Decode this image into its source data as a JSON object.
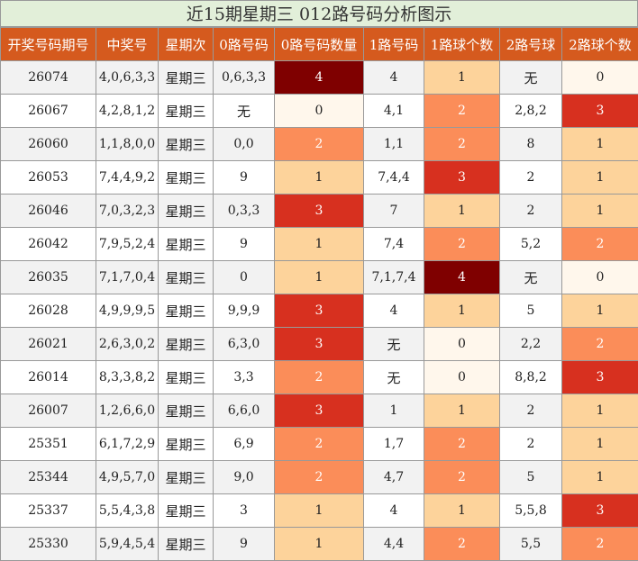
{
  "title": "近15期星期三 012路号码分析图示",
  "headers": [
    "开奖号码期号",
    "中奖号",
    "星期次",
    "0路号码",
    "0路号码数量",
    "1路号码",
    "1路球个数",
    "2路号球",
    "2路球个数"
  ],
  "rows": [
    {
      "period": "26074",
      "number": "4,0,6,3,3",
      "weekday": "星期三",
      "road0": "0,6,3,3",
      "road0_count": "4",
      "road1": "4",
      "road1_count": "1",
      "road2": "无",
      "road2_count": "0"
    },
    {
      "period": "26067",
      "number": "4,2,8,1,2",
      "weekday": "星期三",
      "road0": "无",
      "road0_count": "0",
      "road1": "4,1",
      "road1_count": "2",
      "road2": "2,8,2",
      "road2_count": "3"
    },
    {
      "period": "26060",
      "number": "1,1,8,0,0",
      "weekday": "星期三",
      "road0": "0,0",
      "road0_count": "2",
      "road1": "1,1",
      "road1_count": "2",
      "road2": "8",
      "road2_count": "1"
    },
    {
      "period": "26053",
      "number": "7,4,4,9,2",
      "weekday": "星期三",
      "road0": "9",
      "road0_count": "1",
      "road1": "7,4,4",
      "road1_count": "3",
      "road2": "2",
      "road2_count": "1"
    },
    {
      "period": "26046",
      "number": "7,0,3,2,3",
      "weekday": "星期三",
      "road0": "0,3,3",
      "road0_count": "3",
      "road1": "7",
      "road1_count": "1",
      "road2": "2",
      "road2_count": "1"
    },
    {
      "period": "26042",
      "number": "7,9,5,2,4",
      "weekday": "星期三",
      "road0": "9",
      "road0_count": "1",
      "road1": "7,4",
      "road1_count": "2",
      "road2": "5,2",
      "road2_count": "2"
    },
    {
      "period": "26035",
      "number": "7,1,7,0,4",
      "weekday": "星期三",
      "road0": "0",
      "road0_count": "1",
      "road1": "7,1,7,4",
      "road1_count": "4",
      "road2": "无",
      "road2_count": "0"
    },
    {
      "period": "26028",
      "number": "4,9,9,9,5",
      "weekday": "星期三",
      "road0": "9,9,9",
      "road0_count": "3",
      "road1": "4",
      "road1_count": "1",
      "road2": "5",
      "road2_count": "1"
    },
    {
      "period": "26021",
      "number": "2,6,3,0,2",
      "weekday": "星期三",
      "road0": "6,3,0",
      "road0_count": "3",
      "road1": "无",
      "road1_count": "0",
      "road2": "2,2",
      "road2_count": "2"
    },
    {
      "period": "26014",
      "number": "8,3,3,8,2",
      "weekday": "星期三",
      "road0": "3,3",
      "road0_count": "2",
      "road1": "无",
      "road1_count": "0",
      "road2": "8,8,2",
      "road2_count": "3"
    },
    {
      "period": "26007",
      "number": "1,2,6,6,0",
      "weekday": "星期三",
      "road0": "6,6,0",
      "road0_count": "3",
      "road1": "1",
      "road1_count": "1",
      "road2": "2",
      "road2_count": "1"
    },
    {
      "period": "25351",
      "number": "6,1,7,2,9",
      "weekday": "星期三",
      "road0": "6,9",
      "road0_count": "2",
      "road1": "1,7",
      "road1_count": "2",
      "road2": "2",
      "road2_count": "1"
    },
    {
      "period": "25344",
      "number": "4,9,5,7,0",
      "weekday": "星期三",
      "road0": "9,0",
      "road0_count": "2",
      "road1": "4,7",
      "road1_count": "2",
      "road2": "5",
      "road2_count": "1"
    },
    {
      "period": "25337",
      "number": "5,5,4,3,8",
      "weekday": "星期三",
      "road0": "3",
      "road0_count": "1",
      "road1": "4",
      "road1_count": "1",
      "road2": "5,5,8",
      "road2_count": "3"
    },
    {
      "period": "25330",
      "number": "5,9,4,5,4",
      "weekday": "星期三",
      "road0": "9",
      "road0_count": "1",
      "road1": "4,4",
      "road1_count": "2",
      "road2": "5,5",
      "road2_count": "2"
    }
  ],
  "colors": {
    "header_bg": "#d55a1e",
    "title_bg": "#e2efd9",
    "count_0": "#fff7ec",
    "count_1": "#fdd39b",
    "count_2": "#fb8d59",
    "count_3": "#d7301f",
    "count_4": "#7f0000"
  }
}
